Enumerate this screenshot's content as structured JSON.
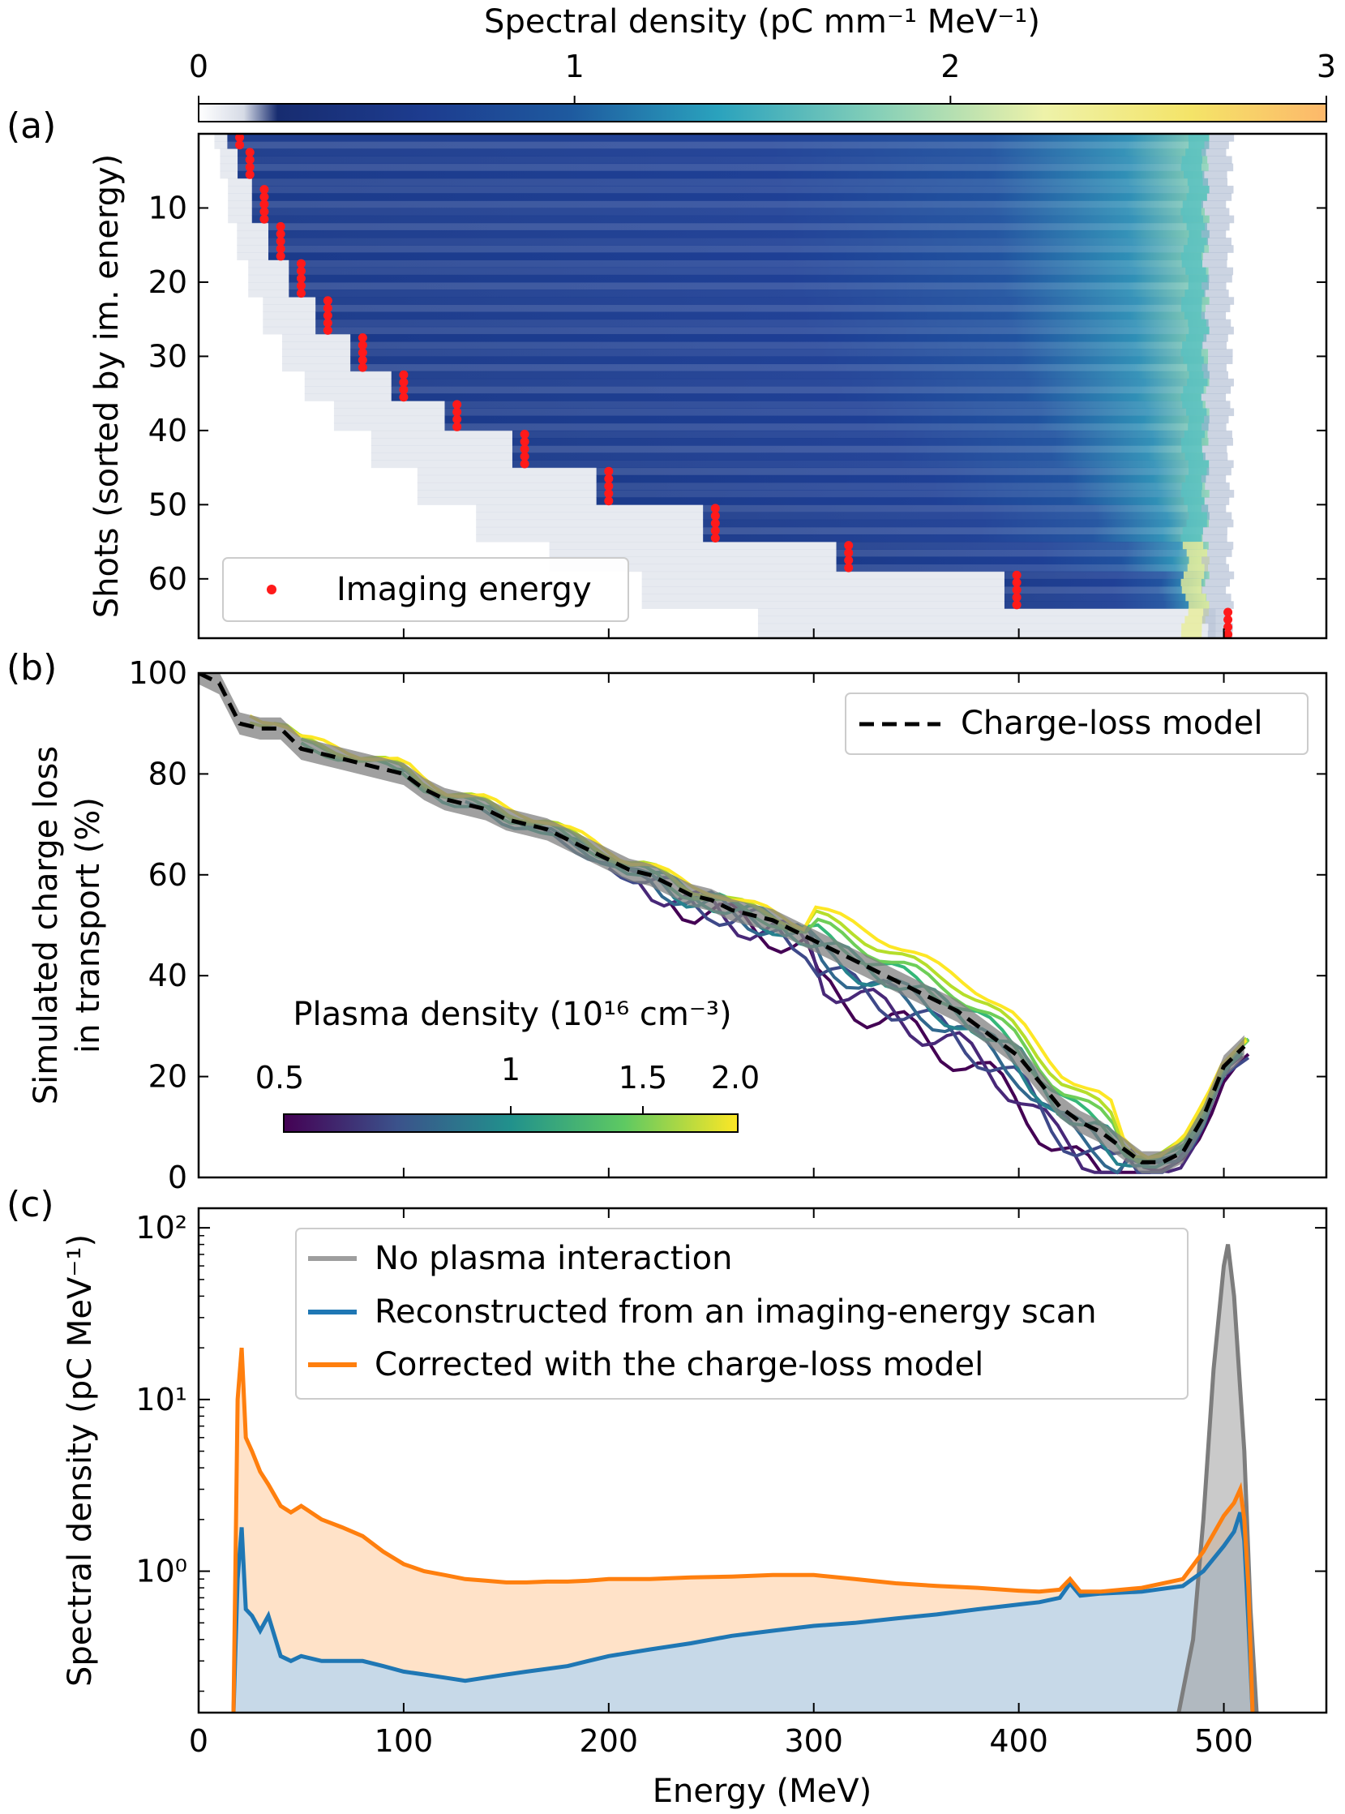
{
  "figure": {
    "panel_labels": [
      "(a)",
      "(b)",
      "(c)"
    ]
  },
  "colors": {
    "heatmap_low": "#ffffff",
    "heatmap_mid": "#1d3c8f",
    "heatmap_high": "#fdb86a",
    "imaging_marker": "#ff1a1a",
    "model_line": "#000000",
    "no_plasma": "#9e9e9e",
    "reconstructed": "#1f77b4",
    "corrected": "#ff7f0e"
  },
  "chart_data": [
    {
      "type": "heatmap",
      "panel": "(a)",
      "colorbar": {
        "label": "Spectral density (pC mm⁻¹ MeV⁻¹)",
        "ticks": [
          0,
          1,
          2,
          3
        ],
        "tick_labels": [
          "0",
          "1",
          "2",
          "3"
        ],
        "range": [
          0,
          3
        ]
      },
      "xlim": [
        0,
        550
      ],
      "ylim": [
        68,
        0
      ],
      "ylabel": "Shots (sorted by im. energy)",
      "y_ticks": [
        10,
        20,
        30,
        40,
        50,
        60
      ],
      "shots": 68,
      "legend": {
        "entries": [
          "Imaging energy"
        ],
        "placement": "lower-left"
      },
      "imaging_energy_groups": [
        {
          "energy": 20,
          "shots": [
            1,
            2
          ]
        },
        {
          "energy": 25,
          "shots": [
            3,
            4,
            5,
            6
          ]
        },
        {
          "energy": 32,
          "shots": [
            8,
            9,
            10,
            11,
            12
          ]
        },
        {
          "energy": 40,
          "shots": [
            13,
            14,
            15,
            16,
            17
          ]
        },
        {
          "energy": 50,
          "shots": [
            18,
            19,
            20,
            21,
            22
          ]
        },
        {
          "energy": 63,
          "shots": [
            23,
            24,
            25,
            26,
            27
          ]
        },
        {
          "energy": 80,
          "shots": [
            28,
            29,
            30,
            31,
            32
          ]
        },
        {
          "energy": 100,
          "shots": [
            33,
            34,
            35,
            36
          ]
        },
        {
          "energy": 126,
          "shots": [
            37,
            38,
            39,
            40
          ]
        },
        {
          "energy": 159,
          "shots": [
            41,
            42,
            43,
            44,
            45
          ]
        },
        {
          "energy": 200,
          "shots": [
            46,
            47,
            48,
            49,
            50
          ]
        },
        {
          "energy": 252,
          "shots": [
            51,
            52,
            53,
            54,
            55
          ]
        },
        {
          "energy": 317,
          "shots": [
            56,
            57,
            58,
            59
          ]
        },
        {
          "energy": 399,
          "shots": [
            60,
            61,
            62,
            63,
            64
          ]
        },
        {
          "energy": 502,
          "shots": [
            65,
            66,
            67,
            68
          ]
        }
      ],
      "peak_energy": 495
    },
    {
      "type": "line",
      "panel": "(b)",
      "xlim": [
        0,
        550
      ],
      "ylim": [
        0,
        100
      ],
      "ylabel": [
        "Simulated charge loss",
        "in transport (%)"
      ],
      "y_ticks": [
        0,
        20,
        40,
        60,
        80,
        100
      ],
      "legend": {
        "entries": [
          "Charge-loss model"
        ],
        "placement": "top-right"
      },
      "model": {
        "name": "Charge-loss model",
        "x": [
          0,
          10,
          20,
          30,
          40,
          50,
          60,
          70,
          80,
          90,
          100,
          110,
          120,
          130,
          140,
          150,
          160,
          170,
          180,
          190,
          200,
          210,
          220,
          230,
          240,
          250,
          260,
          270,
          280,
          290,
          300,
          310,
          320,
          330,
          340,
          350,
          360,
          370,
          380,
          390,
          400,
          410,
          420,
          430,
          440,
          450,
          460,
          470,
          480,
          490,
          500,
          510
        ],
        "y": [
          100,
          98,
          90,
          89,
          89,
          85,
          84,
          83,
          82,
          81,
          80,
          77,
          75,
          74,
          73,
          71,
          70,
          69,
          67,
          65,
          63,
          61,
          60,
          58,
          56,
          55,
          53,
          52,
          51,
          49,
          47,
          45,
          43,
          41,
          39,
          37,
          35,
          33,
          30,
          27,
          24,
          19,
          14,
          11,
          9,
          6,
          3,
          3,
          5,
          12,
          22,
          26
        ]
      },
      "plasma_colorbar": {
        "label": "Plasma density (10¹⁶ cm⁻³)",
        "tick_labels": [
          "0.5",
          "1",
          "1.5",
          "2.0"
        ],
        "range": [
          0.5,
          2.0
        ]
      }
    },
    {
      "type": "area",
      "panel": "(c)",
      "xlim": [
        0,
        550
      ],
      "xlabel": "Energy (MeV)",
      "x_ticks": [
        0,
        100,
        200,
        300,
        400,
        500
      ],
      "ylabel": "Spectral density (pC MeV⁻¹)",
      "y_scale": "log",
      "ylim": [
        0.15,
        130
      ],
      "y_tick_labels": [
        "10⁰",
        "10¹",
        "10²"
      ],
      "legend": {
        "placement": "top-center"
      },
      "series": [
        {
          "name": "No plasma interaction",
          "x": [
            478,
            485,
            490,
            495,
            500,
            502,
            505,
            510,
            513,
            516
          ],
          "y": [
            0.15,
            0.4,
            2,
            15,
            60,
            80,
            40,
            5,
            0.6,
            0.15
          ]
        },
        {
          "name": "Reconstructed from an imaging-energy scan",
          "x": [
            17,
            19,
            21,
            23,
            26,
            30,
            34,
            40,
            45,
            50,
            60,
            70,
            80,
            90,
            100,
            110,
            120,
            130,
            140,
            150,
            160,
            170,
            180,
            190,
            200,
            220,
            240,
            260,
            280,
            300,
            320,
            340,
            360,
            380,
            400,
            410,
            420,
            425,
            430,
            440,
            460,
            480,
            490,
            500,
            505,
            508,
            510,
            512,
            514
          ],
          "y": [
            0.15,
            0.9,
            1.8,
            0.6,
            0.55,
            0.45,
            0.55,
            0.32,
            0.3,
            0.32,
            0.3,
            0.3,
            0.3,
            0.28,
            0.26,
            0.25,
            0.24,
            0.23,
            0.24,
            0.25,
            0.26,
            0.27,
            0.28,
            0.3,
            0.32,
            0.35,
            0.38,
            0.42,
            0.45,
            0.48,
            0.5,
            0.53,
            0.56,
            0.6,
            0.64,
            0.66,
            0.7,
            0.85,
            0.72,
            0.74,
            0.76,
            0.82,
            1.0,
            1.4,
            1.7,
            2.2,
            1.5,
            0.5,
            0.15
          ]
        },
        {
          "name": "Corrected with the charge-loss model",
          "x": [
            17,
            19,
            21,
            23,
            26,
            30,
            34,
            40,
            45,
            50,
            60,
            70,
            80,
            90,
            100,
            110,
            120,
            130,
            140,
            150,
            160,
            170,
            180,
            190,
            200,
            220,
            240,
            260,
            280,
            300,
            320,
            340,
            360,
            380,
            400,
            410,
            420,
            425,
            430,
            440,
            460,
            480,
            490,
            500,
            505,
            508,
            510,
            512,
            514
          ],
          "y": [
            0.15,
            10,
            20,
            6,
            5,
            3.8,
            3.2,
            2.4,
            2.2,
            2.4,
            2.0,
            1.8,
            1.6,
            1.3,
            1.1,
            1.0,
            0.95,
            0.9,
            0.88,
            0.86,
            0.86,
            0.87,
            0.87,
            0.88,
            0.9,
            0.9,
            0.92,
            0.93,
            0.95,
            0.95,
            0.9,
            0.85,
            0.82,
            0.8,
            0.77,
            0.76,
            0.78,
            0.9,
            0.76,
            0.76,
            0.8,
            0.9,
            1.3,
            2.1,
            2.5,
            3.0,
            2.0,
            0.8,
            0.15
          ]
        }
      ]
    }
  ]
}
